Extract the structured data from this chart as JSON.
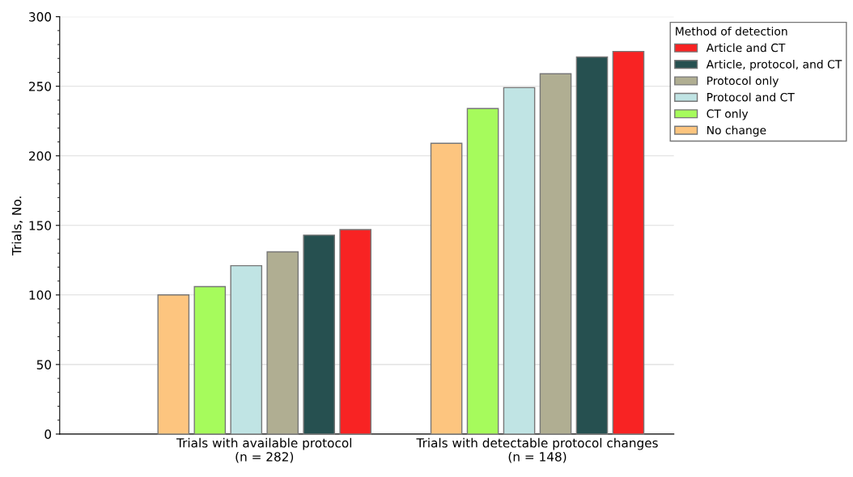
{
  "chart_data": {
    "type": "bar",
    "ylabel": "Trials, No.",
    "legend_title": "Method of detection",
    "categories": [
      "Trials with available protocol\n(n = 282)",
      "Trials with detectable protocol changes\n(n = 148)"
    ],
    "series": [
      {
        "name": "No change",
        "color": "#fdc57f",
        "values": [
          100,
          209
        ]
      },
      {
        "name": "CT only",
        "color": "#a6fb5c",
        "values": [
          106,
          234
        ]
      },
      {
        "name": "Protocol and CT",
        "color": "#c0e4e4",
        "values": [
          121,
          249
        ]
      },
      {
        "name": "Protocol only",
        "color": "#b0ae92",
        "values": [
          131,
          259
        ]
      },
      {
        "name": "Article, protocol, and CT",
        "color": "#265050",
        "values": [
          143,
          271
        ]
      },
      {
        "name": "Article and CT",
        "color": "#f82323",
        "values": [
          147,
          275
        ]
      }
    ],
    "ylim": [
      0,
      300
    ],
    "yticks": [
      0,
      50,
      100,
      150,
      200,
      250,
      300
    ],
    "grid": "y",
    "legend": "top right"
  }
}
